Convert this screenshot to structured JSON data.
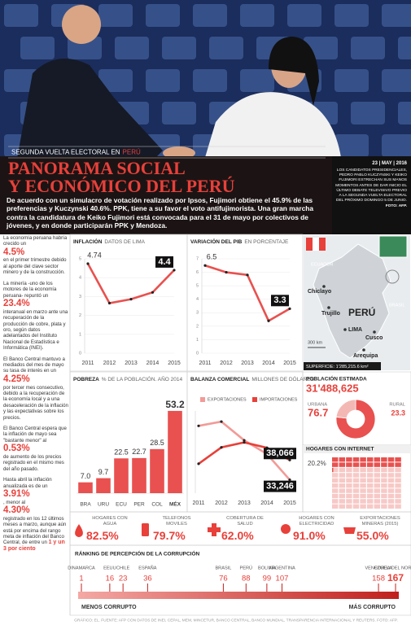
{
  "header": {
    "kicker": "SEGUNDA VUELTA ELECTORAL EN",
    "kicker_hl": "PERÚ",
    "title_lines": [
      "PANORAMA SOCIAL",
      "Y ECONÓMICO DEL PERÚ"
    ],
    "subtitle": "De acuerdo con un simulacro de votación realizado por Ipsos, Fujimori obtiene el 45.9% de las preferencias y Kuczynski 40.6%. PPK, tiene a su favor el voto antifujimorista. Una gran marcha contra la candidatura de Keiko Fujimori está convocada para el 31 de mayo por colectivos de jóvenes, y en donde participarán PPK y Mendoza."
  },
  "caption": {
    "date": "23 | MAY | 2016",
    "text": "LOS CANDIDATOS PRESIDENCIALES, PEDRO PABLO KUCZYNSKI Y KEIKO FUJIMORI ESTRECHAN SUS MANOS MOMENTOS ANTES DE DAR INICIO EL ÚLTIMO DEBATE TELEVISIVO PREVIO A LA SEGUNDA VUELTA ELECTORAL DEL PRÓXIMO DOMINGO 5 DE JUNIO.",
    "credit": "FOTO: AFP."
  },
  "sidebar": [
    {
      "parts": [
        {
          "text": "La economía peruana habría crecido un"
        },
        {
          "text": "4.5%",
          "hl": true
        },
        {
          "text": "en el primer trimestre debido al aporte del clave sector minero y de la construcción."
        }
      ]
    },
    {
      "parts": [
        {
          "text": "La minería -uno de los motores de la economía peruana- repuntó un"
        },
        {
          "text": "23.4%",
          "hl": true
        },
        {
          "text": "interanual en marzo ante una recuperación de la producción de cobre, plata y oro, según datos adelantados del Instituto Nacional de Estadística e Informática (INEI)."
        }
      ]
    },
    {
      "parts": [
        {
          "text": "El Banco Central mantuvo a mediados del mes de mayo su tasa de interés en un"
        },
        {
          "text": "4.25%",
          "hl": true
        },
        {
          "text": "por tercer mes consecutivo, debido a la recuperación de la economía local y a una desaceleración de la inflación y las expectativas sobre los precios."
        }
      ]
    },
    {
      "parts": [
        {
          "text": "El Banco Central espera que la inflación de mayo sea \"bastante menor\" al"
        },
        {
          "text": "0.53%",
          "hl": true
        },
        {
          "text": "de aumento de los precios registrado en el mismo mes del año pasado."
        }
      ]
    },
    {
      "parts": [
        {
          "text": "Hasta abril la inflación anualizada es de un"
        },
        {
          "text": "3.91%",
          "hl": true
        },
        {
          "text": ", menor al"
        },
        {
          "text": "4.30%",
          "hl": true
        },
        {
          "text": "registrado en los 12 últimos meses a marzo, aunque aún está por encima del rango meta de inflación del Banco Central, de entre un"
        },
        {
          "text": "1 y un 3 por ciento",
          "hl": true,
          "small": true
        }
      ]
    }
  ],
  "map": {
    "country": "PERÚ",
    "cities": [
      "Chiclayo",
      "Trujillo",
      "LIMA",
      "Cusco",
      "Arequipa"
    ],
    "neighbors": [
      "ECUADOR",
      "BRASIL"
    ],
    "scale": "300 km",
    "area": "SUPERFICIE: 1'285,215.6 km²"
  },
  "indicators": [
    {
      "label": "HOGARES CON AGUA",
      "value": "82.5%"
    },
    {
      "label": "TELEFONOS MOVILES",
      "value": "79.7%"
    },
    {
      "label": "COBERTURA DE SALUD",
      "value": "62.0%"
    },
    {
      "label": "HOGARES CON ELECTRICIDAD",
      "value": "91.0%"
    },
    {
      "label": "EXPORTACIONES MINERAS (2015)",
      "value": "55.0%"
    }
  ],
  "footer": "GRÁFICO: EL. FUENTE: AFP CON DATOS DE INEI, CEPAL, MEM, MINCETUR, BANCO CENTRAL, BANCO MUNDIAL, TRANSPARENCIA INTERNACIONAL Y REUTERS. FOTO: AFP.",
  "chart_data": [
    {
      "type": "line",
      "title": "INFLACIÓN",
      "subtitle": "DATOS DE LIMA",
      "categories": [
        "2011",
        "2012",
        "2013",
        "2014",
        "2015"
      ],
      "values": [
        4.74,
        2.65,
        2.86,
        3.22,
        4.4
      ],
      "value_labels": [
        "4.74",
        null,
        null,
        null,
        "4.4"
      ],
      "color": "#e8514f",
      "ylim": [
        0,
        5
      ],
      "yticks": [
        0,
        1,
        2,
        3,
        4,
        5
      ],
      "grid": true
    },
    {
      "type": "line",
      "title": "VARIACIÓN DEL PIB",
      "subtitle": "EN PORCENTAJE",
      "categories": [
        "2011",
        "2012",
        "2013",
        "2014",
        "2015"
      ],
      "values": [
        6.5,
        6.0,
        5.8,
        2.4,
        3.3
      ],
      "value_labels": [
        "6.5",
        null,
        null,
        null,
        "3.3"
      ],
      "color": "#e8514f",
      "ylim": [
        0,
        7
      ],
      "yticks": [
        0,
        1,
        2,
        3,
        4,
        5,
        6,
        7
      ],
      "grid": true
    },
    {
      "type": "bar",
      "title": "POBREZA",
      "subtitle": "% DE LA POBLACIÓN. AÑO 2014",
      "categories": [
        "BRA",
        "URU",
        "ECU",
        "PER",
        "COL",
        "MÉX"
      ],
      "values": [
        7.0,
        9.7,
        22.5,
        22.7,
        28.5,
        53.2
      ],
      "value_labels": [
        "7.0",
        "9.7",
        "22.5",
        "22.7",
        "28.5",
        "53.2"
      ],
      "color": "#e8514f",
      "ylim": [
        0,
        60
      ]
    },
    {
      "type": "line",
      "title": "BALANZA COMERCIAL",
      "subtitle": "MILLONES DE DÓLARES",
      "categories": [
        "2011",
        "2012",
        "2013",
        "2014",
        "2015"
      ],
      "series": [
        {
          "name": "EXPORTACIONES",
          "color": "#f29b97",
          "values": [
            46376,
            47411,
            42861,
            39533,
            33246
          ],
          "value_labels": [
            null,
            null,
            null,
            null,
            "33,246"
          ]
        },
        {
          "name": "IMPORTACIONES",
          "color": "#e8403a",
          "values": [
            37152,
            41135,
            42356,
            41042,
            38066
          ],
          "value_labels": [
            null,
            null,
            null,
            null,
            "38,066"
          ]
        }
      ],
      "ylim": [
        30000,
        50000
      ],
      "grid": false
    },
    {
      "type": "pie",
      "title": "POBLACIÓN ESTIMADA",
      "total": 31488625,
      "total_label": "31'488,625",
      "categories": [
        "URBANA",
        "RURAL"
      ],
      "values": [
        76.7,
        23.3
      ],
      "colors": [
        "#e8514f",
        "#f4b8b4"
      ]
    },
    {
      "type": "waffle",
      "title": "HOGARES CON INTERNET",
      "values": [
        20.2
      ],
      "value_labels": [
        "20.2%"
      ],
      "color": "#e8514f"
    },
    {
      "type": "strip",
      "title": "RÁNKING DE PERCEPCIÓN DE LA CORRUPCIÓN",
      "categories": [
        "DINAMARCA",
        "EEUU",
        "CHILE",
        "ESPAÑA",
        "BRASIL",
        "PERÚ",
        "BOLIVIA",
        "ARGENTINA",
        "VENEZUELA",
        "COREA DEL NORTE"
      ],
      "values": [
        1,
        16,
        23,
        36,
        76,
        88,
        99,
        107,
        158,
        167
      ],
      "xlim": [
        1,
        167
      ],
      "annotations": [
        "MENOS CORRUPTO",
        "MÁS CORRUPTO"
      ],
      "color": "#e8403a"
    }
  ]
}
